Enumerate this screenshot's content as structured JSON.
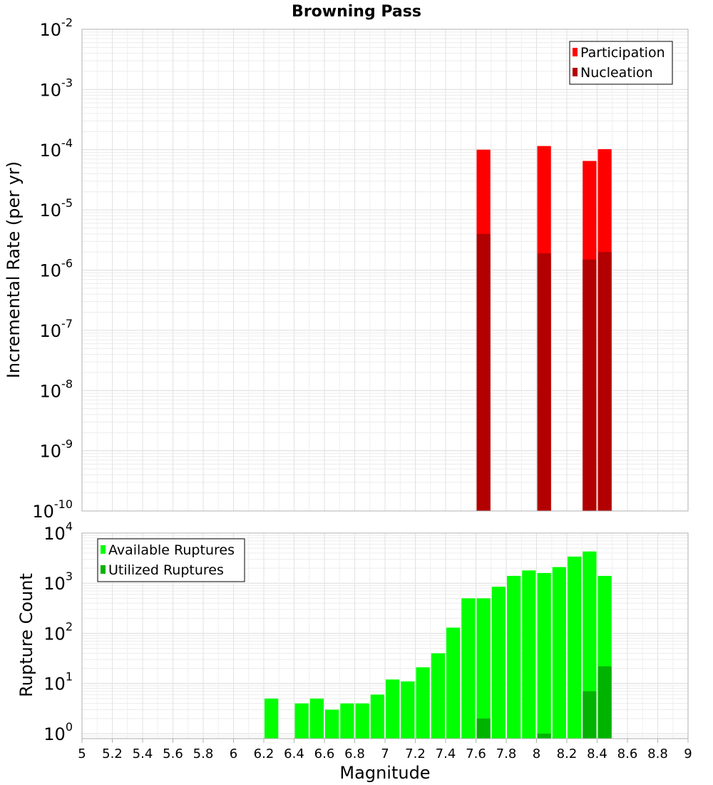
{
  "chart_data": [
    {
      "type": "bar",
      "title": "Browning Pass",
      "xlabel": "",
      "ylabel": "Incremental Rate (per yr)",
      "yscale": "log",
      "ylim_exp": [
        -10,
        -2
      ],
      "xlim": [
        5,
        9
      ],
      "bin_width": 0.1,
      "legend_position": "top-right",
      "legend": [
        {
          "name": "Participation",
          "color": "#ff0000"
        },
        {
          "name": "Nucleation",
          "color": "#b20000"
        }
      ],
      "y_ticks": [
        {
          "exp": -10,
          "base": "10",
          "power": "-10"
        },
        {
          "exp": -9,
          "base": "10",
          "power": "-9"
        },
        {
          "exp": -8,
          "base": "10",
          "power": "-8"
        },
        {
          "exp": -7,
          "base": "10",
          "power": "-7"
        },
        {
          "exp": -6,
          "base": "10",
          "power": "-6"
        },
        {
          "exp": -5,
          "base": "10",
          "power": "-5"
        },
        {
          "exp": -4,
          "base": "10",
          "power": "-4"
        },
        {
          "exp": -3,
          "base": "10",
          "power": "-3"
        },
        {
          "exp": -2,
          "base": "10",
          "power": "-2"
        }
      ],
      "series": [
        {
          "name": "Participation",
          "color": "#ff0000",
          "x": [
            7.65,
            8.05,
            8.35,
            8.45
          ],
          "values": [
            0.0001,
            0.000115,
            6.5e-05,
            0.000102
          ]
        },
        {
          "name": "Nucleation",
          "color": "#b20000",
          "x": [
            7.65,
            8.05,
            8.35,
            8.45
          ],
          "values": [
            4e-06,
            1.9e-06,
            1.5e-06,
            2e-06
          ]
        }
      ]
    },
    {
      "type": "bar",
      "title": "",
      "xlabel": "Magnitude",
      "ylabel": "Rupture Count",
      "yscale": "log",
      "ylim_exp": [
        -0.1,
        4
      ],
      "xlim": [
        5,
        9
      ],
      "bin_width": 0.1,
      "legend_position": "top-left",
      "legend": [
        {
          "name": "Available Ruptures",
          "color": "#00ff00"
        },
        {
          "name": "Utilized Ruptures",
          "color": "#00b300"
        }
      ],
      "y_ticks": [
        {
          "exp": 0,
          "base": "10",
          "power": "0"
        },
        {
          "exp": 1,
          "base": "10",
          "power": "1"
        },
        {
          "exp": 2,
          "base": "10",
          "power": "2"
        },
        {
          "exp": 3,
          "base": "10",
          "power": "3"
        },
        {
          "exp": 4,
          "base": "10",
          "power": "4"
        }
      ],
      "x_ticks": [
        "5",
        "5.2",
        "5.4",
        "5.6",
        "5.8",
        "6",
        "6.2",
        "6.4",
        "6.6",
        "6.8",
        "7",
        "7.2",
        "7.4",
        "7.6",
        "7.8",
        "8",
        "8.2",
        "8.4",
        "8.6",
        "8.8",
        "9"
      ],
      "series": [
        {
          "name": "Available Ruptures",
          "color": "#00ff00",
          "x": [
            6.25,
            6.45,
            6.55,
            6.65,
            6.75,
            6.85,
            6.95,
            7.05,
            7.15,
            7.25,
            7.35,
            7.45,
            7.55,
            7.65,
            7.75,
            7.85,
            7.95,
            8.05,
            8.15,
            8.25,
            8.35,
            8.45
          ],
          "values": [
            5,
            4,
            5,
            3,
            4,
            4,
            6,
            12,
            11,
            21,
            40,
            130,
            500,
            500,
            850,
            1400,
            1800,
            1600,
            2100,
            3400,
            4300,
            1400
          ]
        },
        {
          "name": "Utilized Ruptures",
          "color": "#00b300",
          "x": [
            7.65,
            8.05,
            8.35,
            8.45
          ],
          "values": [
            2,
            1,
            7,
            22
          ]
        }
      ]
    }
  ]
}
